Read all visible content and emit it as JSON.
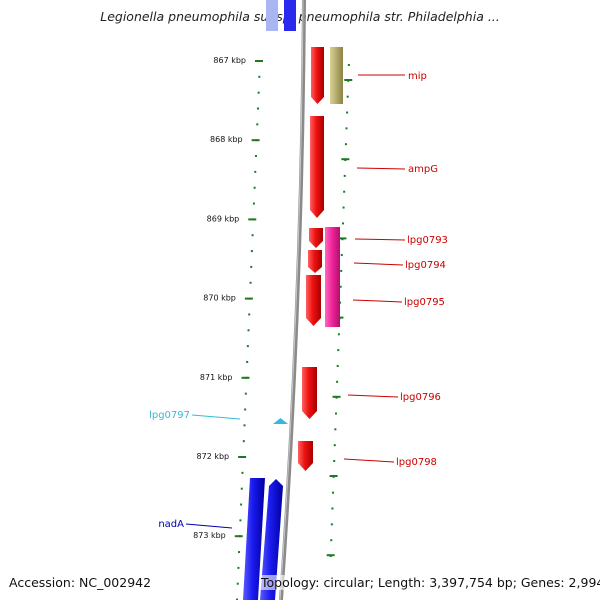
{
  "title": "Legionella pneumophila subsp. pneumophila str. Philadelphia ...",
  "footer": {
    "accession": "Accession: NC_002942",
    "summary": "Topology: circular; Length: 3,397,754 bp; Genes: 2,994"
  },
  "colors": {
    "backbone": "#8a8a8a",
    "forward_gene": "#ee1111",
    "reverse_gene": "#1a1aee",
    "pink_gene": "#ee2299",
    "olive_gene": "#b3ab6a",
    "scale": "#1f7a1f",
    "label_red": "#cc0000",
    "label_cyan": "#33bbdd",
    "label_blue": "#0000aa"
  },
  "scale": {
    "unit": "kbp",
    "ticks": [
      {
        "value": 867,
        "label": "867 kbp"
      },
      {
        "value": 868,
        "label": "868 kbp"
      },
      {
        "value": 869,
        "label": "869 kbp"
      },
      {
        "value": 870,
        "label": "870 kbp"
      },
      {
        "value": 871,
        "label": "871 kbp"
      },
      {
        "value": 872,
        "label": "872 kbp"
      },
      {
        "value": 873,
        "label": "873 kbp"
      }
    ]
  },
  "genes": [
    {
      "name": "mip",
      "strand": "+",
      "color": "#ee1111"
    },
    {
      "name": "ampG",
      "strand": "+",
      "color": "#ee1111"
    },
    {
      "name": "lpg0793",
      "strand": "+",
      "color": "#ee1111"
    },
    {
      "name": "lpg0794",
      "strand": "+",
      "color": "#ee1111"
    },
    {
      "name": "lpg0795",
      "strand": "+",
      "color": "#ee1111"
    },
    {
      "name": "lpg0796",
      "strand": "+",
      "color": "#ee1111"
    },
    {
      "name": "lpg0797",
      "strand": "-",
      "color": "#33bbdd"
    },
    {
      "name": "lpg0798",
      "strand": "+",
      "color": "#ee1111"
    },
    {
      "name": "nadA",
      "strand": "-",
      "color": "#1a1aee"
    }
  ]
}
